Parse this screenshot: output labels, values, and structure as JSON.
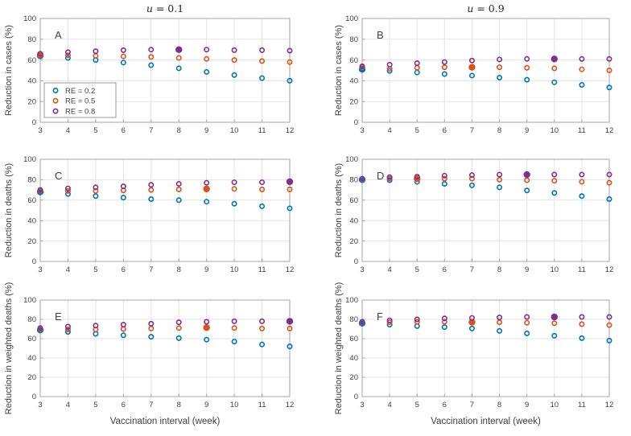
{
  "figure": {
    "column_titles": [
      "u = 0.1",
      "u = 0.9"
    ],
    "xlabel": "Vaccination interval (week)",
    "legend_items": [
      {
        "label": "RE = 0.2",
        "color": "#0072BD"
      },
      {
        "label": "RE = 0.5",
        "color": "#D95319"
      },
      {
        "label": "RE = 0.8",
        "color": "#7E2F8E"
      }
    ],
    "colors": {
      "blue": "#0072BD",
      "orange": "#D95319",
      "purple": "#7E2F8E",
      "grid": "#e3e3e3",
      "axis": "#a6a6a6",
      "text": "#404040"
    }
  },
  "chart_data": [
    {
      "id": "A",
      "type": "scatter",
      "title": "u = 0.1",
      "ylabel": "Reduction in cases (%)",
      "x": [
        3,
        4,
        5,
        6,
        7,
        8,
        9,
        10,
        11,
        12
      ],
      "xlim": [
        3,
        12
      ],
      "ylim": [
        0,
        100
      ],
      "yticks": [
        0,
        20,
        40,
        60,
        80,
        100
      ],
      "legend": true,
      "series": [
        {
          "name": "RE = 0.2",
          "color": "#0072BD",
          "values": [
            64,
            62,
            60,
            57.5,
            55,
            52,
            48.5,
            45.5,
            42.5,
            40
          ],
          "filled_at_x": 3
        },
        {
          "name": "RE = 0.5",
          "color": "#D95319",
          "values": [
            65,
            64.5,
            64,
            63.5,
            63,
            62,
            61,
            60,
            59,
            58
          ],
          "filled_at_x": 3
        },
        {
          "name": "RE = 0.8",
          "color": "#7E2F8E",
          "values": [
            66,
            67.5,
            68.5,
            69.5,
            70,
            70,
            70,
            69.5,
            69.5,
            69
          ],
          "filled_at_x": 8
        }
      ]
    },
    {
      "id": "B",
      "type": "scatter",
      "title": "u = 0.9",
      "ylabel": "Reduction in cases (%)",
      "x": [
        3,
        4,
        5,
        6,
        7,
        8,
        9,
        10,
        11,
        12
      ],
      "xlim": [
        3,
        12
      ],
      "ylim": [
        0,
        100
      ],
      "yticks": [
        0,
        20,
        40,
        60,
        80,
        100
      ],
      "legend": false,
      "series": [
        {
          "name": "RE = 0.2",
          "color": "#0072BD",
          "values": [
            51,
            49.5,
            48,
            46.5,
            45,
            43,
            41,
            38.5,
            36,
            33.5
          ],
          "filled_at_x": 3
        },
        {
          "name": "RE = 0.5",
          "color": "#D95319",
          "values": [
            53,
            51.5,
            52.5,
            53,
            53,
            53,
            52.5,
            52,
            51,
            50
          ],
          "filled_at_x": 7
        },
        {
          "name": "RE = 0.8",
          "color": "#7E2F8E",
          "values": [
            54,
            55.5,
            57,
            58,
            59.5,
            60.5,
            61,
            61,
            61,
            61
          ],
          "filled_at_x": 10
        }
      ]
    },
    {
      "id": "C",
      "type": "scatter",
      "title": "",
      "ylabel": "Reduction in deaths (%)",
      "x": [
        3,
        4,
        5,
        6,
        7,
        8,
        9,
        10,
        11,
        12
      ],
      "xlim": [
        3,
        12
      ],
      "ylim": [
        0,
        100
      ],
      "yticks": [
        0,
        20,
        40,
        60,
        80,
        100
      ],
      "legend": false,
      "series": [
        {
          "name": "RE = 0.2",
          "color": "#0072BD",
          "values": [
            68,
            66,
            64,
            62.5,
            61,
            60,
            58.5,
            56.5,
            54,
            52
          ],
          "filled_at_x": 3
        },
        {
          "name": "RE = 0.5",
          "color": "#D95319",
          "values": [
            69,
            69,
            69,
            69.5,
            70,
            70.5,
            71,
            71,
            70.5,
            70.5
          ],
          "filled_at_x": 9
        },
        {
          "name": "RE = 0.8",
          "color": "#7E2F8E",
          "values": [
            70,
            71.5,
            72.5,
            73.5,
            75,
            76,
            77,
            77.5,
            77.5,
            78
          ],
          "filled_at_x": 12
        }
      ]
    },
    {
      "id": "D",
      "type": "scatter",
      "title": "",
      "ylabel": "Reduction in deaths (%)",
      "x": [
        3,
        4,
        5,
        6,
        7,
        8,
        9,
        10,
        11,
        12
      ],
      "xlim": [
        3,
        12
      ],
      "ylim": [
        0,
        100
      ],
      "yticks": [
        0,
        20,
        40,
        60,
        80,
        100
      ],
      "legend": false,
      "series": [
        {
          "name": "RE = 0.2",
          "color": "#0072BD",
          "values": [
            80,
            79.5,
            78,
            76,
            74.5,
            72.5,
            69.5,
            67,
            64,
            61
          ],
          "filled_at_x": 3
        },
        {
          "name": "RE = 0.5",
          "color": "#D95319",
          "values": [
            80.5,
            81,
            81,
            81,
            81,
            80,
            79.5,
            79,
            78,
            77
          ],
          "filled_at_x": 5
        },
        {
          "name": "RE = 0.8",
          "color": "#7E2F8E",
          "values": [
            81,
            82.5,
            83,
            84,
            84.5,
            85,
            85,
            85,
            85,
            85
          ],
          "filled_at_x": 9
        }
      ]
    },
    {
      "id": "E",
      "type": "scatter",
      "title": "",
      "ylabel": "Reduction in weighted deaths (%)",
      "xlabel": "Vaccination interval (week)",
      "x": [
        3,
        4,
        5,
        6,
        7,
        8,
        9,
        10,
        11,
        12
      ],
      "xlim": [
        3,
        12
      ],
      "ylim": [
        0,
        100
      ],
      "yticks": [
        0,
        20,
        40,
        60,
        80,
        100
      ],
      "legend": false,
      "series": [
        {
          "name": "RE = 0.2",
          "color": "#0072BD",
          "values": [
            69,
            67,
            65,
            63.5,
            62,
            60.5,
            59,
            57,
            54,
            52
          ],
          "filled_at_x": 3
        },
        {
          "name": "RE = 0.5",
          "color": "#D95319",
          "values": [
            70,
            69.5,
            69.5,
            70,
            70.5,
            71,
            71.5,
            71,
            70.5,
            70.5
          ],
          "filled_at_x": 9
        },
        {
          "name": "RE = 0.8",
          "color": "#7E2F8E",
          "values": [
            71,
            72.5,
            73.5,
            74.5,
            75.5,
            77,
            77.5,
            78,
            78,
            78
          ],
          "filled_at_x": 12
        }
      ]
    },
    {
      "id": "F",
      "type": "scatter",
      "title": "",
      "ylabel": "Reduction in weighted deaths (%)",
      "xlabel": "Vaccination interval (week)",
      "x": [
        3,
        4,
        5,
        6,
        7,
        8,
        9,
        10,
        11,
        12
      ],
      "xlim": [
        3,
        12
      ],
      "ylim": [
        0,
        100
      ],
      "yticks": [
        0,
        20,
        40,
        60,
        80,
        100
      ],
      "legend": false,
      "series": [
        {
          "name": "RE = 0.2",
          "color": "#0072BD",
          "values": [
            76,
            74.5,
            73,
            72,
            70.5,
            68,
            65.5,
            63,
            60.5,
            58
          ],
          "filled_at_x": 3
        },
        {
          "name": "RE = 0.5",
          "color": "#D95319",
          "values": [
            77,
            77,
            77.5,
            77.5,
            77,
            77,
            76.5,
            76,
            75,
            74
          ],
          "filled_at_x": 7
        },
        {
          "name": "RE = 0.8",
          "color": "#7E2F8E",
          "values": [
            77.5,
            79,
            80,
            81,
            81.5,
            82,
            82.5,
            82.5,
            82.5,
            82.5
          ],
          "filled_at_x": 10
        }
      ]
    }
  ]
}
